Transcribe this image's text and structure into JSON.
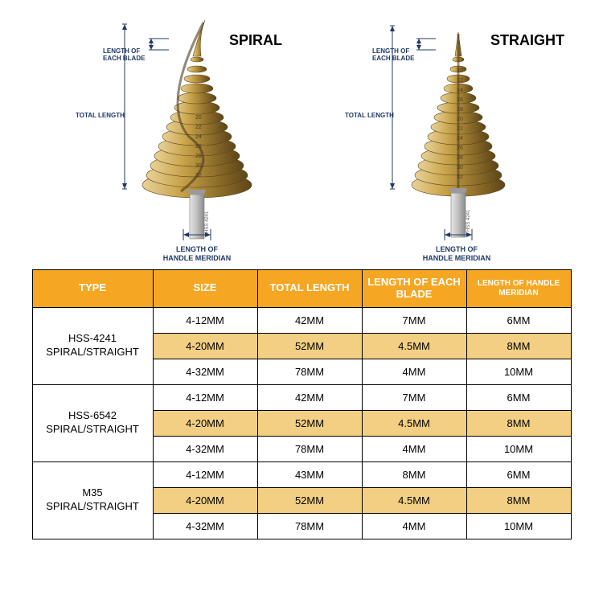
{
  "diagram": {
    "spiral_title": "SPIRAL",
    "straight_title": "STRAIGHT",
    "len_each_blade": "LENGTH OF\nEACH BLADE",
    "total_length": "TOTAL LENGTH",
    "handle_meridian": "LENGTH OF\nHANDLE MERIDIAN",
    "spiral_steps": [
      "20",
      "22",
      "24",
      "26",
      "28",
      "30",
      "32"
    ],
    "straight_steps": [
      "10",
      "12",
      "14",
      "16",
      "18",
      "20",
      "22",
      "24",
      "26",
      "28",
      "30",
      "32"
    ],
    "shank_mark": "HSS  4241",
    "colors": {
      "bit_light": "#d8b968",
      "bit_dark": "#8e6e2a",
      "bit_edge": "#5c4518",
      "dim": "#203864",
      "shank": "#cfcfcf",
      "shank_dk": "#9a9a9a"
    }
  },
  "table": {
    "headers": [
      "TYPE",
      "SIZE",
      "TOTAL LENGTH",
      "LENGTH OF EACH BLADE",
      "LENGTH OF HANDLE MERIDIAN"
    ],
    "groups": [
      {
        "type": "HSS-4241\nSPIRAL/STRAIGHT",
        "rows": [
          {
            "size": "4-12MM",
            "total": "42MM",
            "blade": "7MM",
            "meridian": "6MM",
            "hl": false
          },
          {
            "size": "4-20MM",
            "total": "52MM",
            "blade": "4.5MM",
            "meridian": "8MM",
            "hl": true
          },
          {
            "size": "4-32MM",
            "total": "78MM",
            "blade": "4MM",
            "meridian": "10MM",
            "hl": false
          }
        ]
      },
      {
        "type": "HSS-6542\nSPIRAL/STRAIGHT",
        "rows": [
          {
            "size": "4-12MM",
            "total": "42MM",
            "blade": "7MM",
            "meridian": "6MM",
            "hl": false
          },
          {
            "size": "4-20MM",
            "total": "52MM",
            "blade": "4.5MM",
            "meridian": "8MM",
            "hl": true
          },
          {
            "size": "4-32MM",
            "total": "78MM",
            "blade": "4MM",
            "meridian": "10MM",
            "hl": false
          }
        ]
      },
      {
        "type": "M35\nSPIRAL/STRAIGHT",
        "rows": [
          {
            "size": "4-12MM",
            "total": "43MM",
            "blade": "8MM",
            "meridian": "6MM",
            "hl": false
          },
          {
            "size": "4-20MM",
            "total": "52MM",
            "blade": "4.5MM",
            "meridian": "8MM",
            "hl": true
          },
          {
            "size": "4-32MM",
            "total": "78MM",
            "blade": "4MM",
            "meridian": "10MM",
            "hl": false
          }
        ]
      }
    ],
    "header_bg": "#f5a623",
    "highlight_bg": "#f2cf82"
  }
}
